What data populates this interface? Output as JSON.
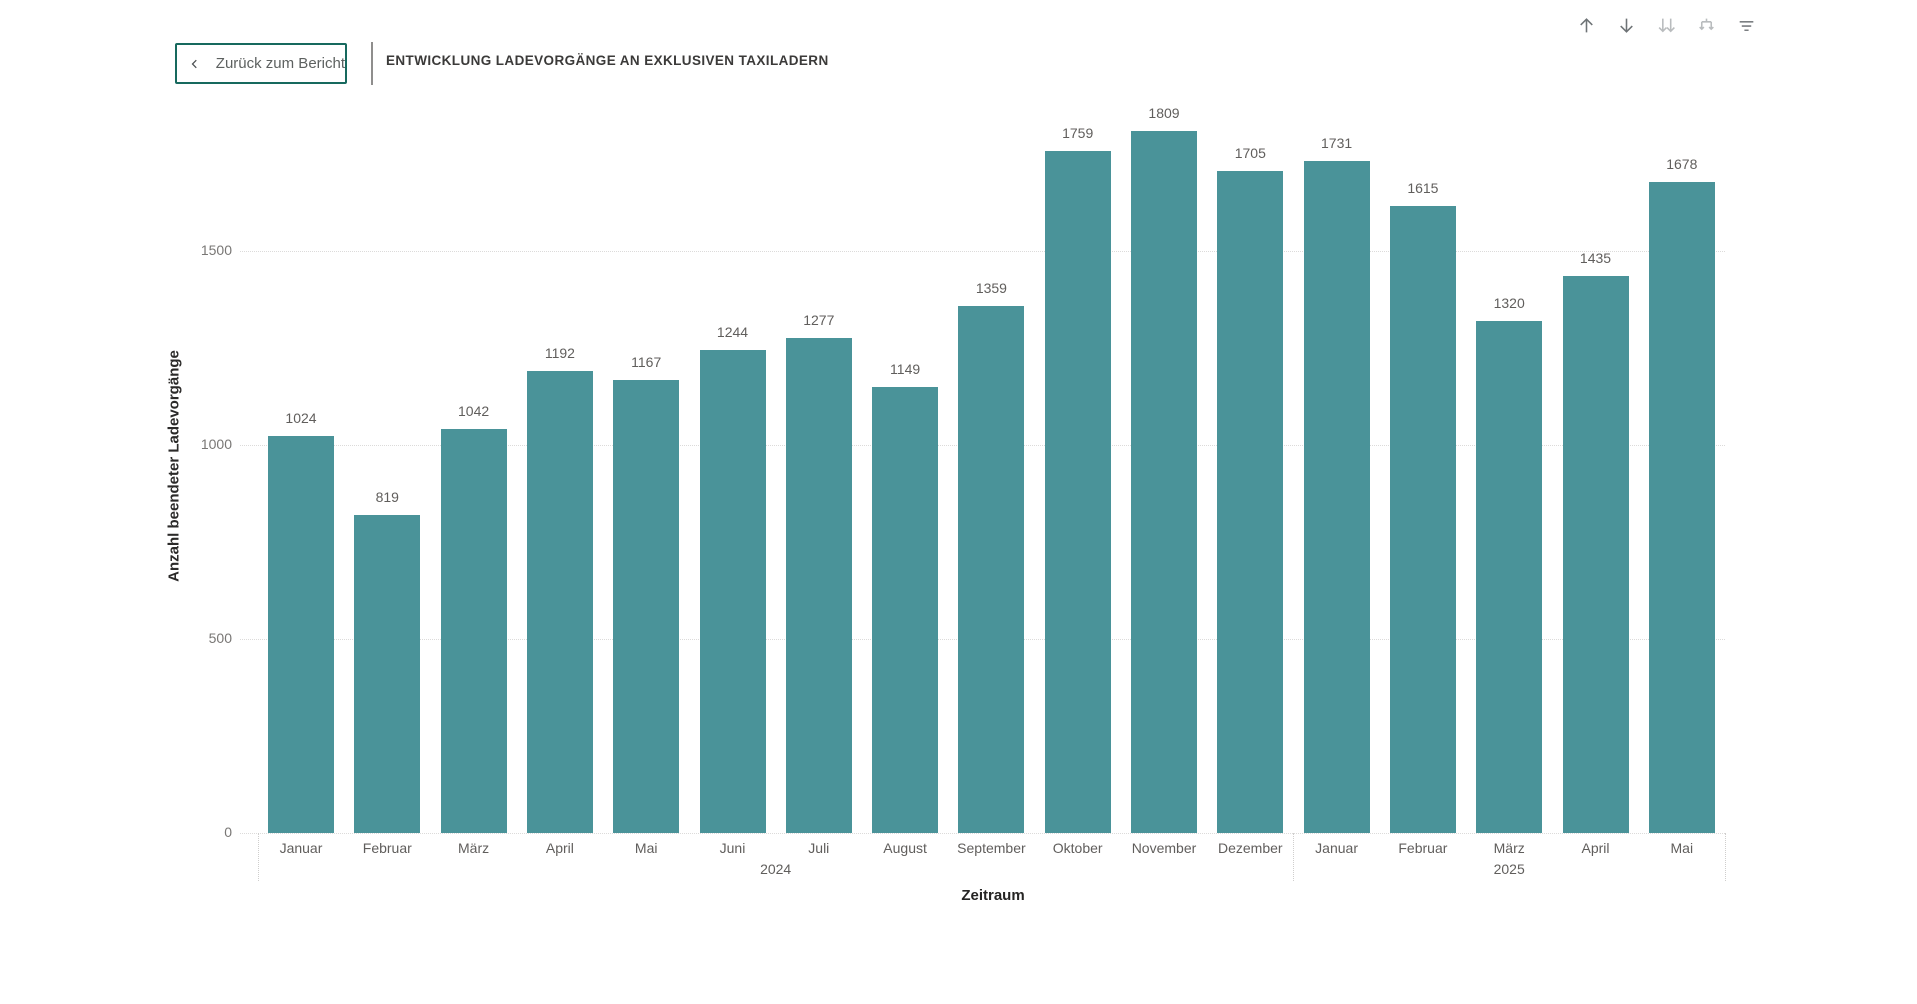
{
  "header": {
    "back_button": {
      "label": "Zurück zum Bericht"
    },
    "title": "ENTWICKLUNG LADEVORGÄNGE AN EXKLUSIVEN TAXILADERN"
  },
  "toolbar": {
    "drill_up": "drill-up",
    "drill_down": "drill-down",
    "next_level": "go-to-next-level",
    "expand_all": "expand-all-down-one-level",
    "filter": "filter"
  },
  "chart_data": {
    "type": "bar",
    "title": "ENTWICKLUNG LADEVORGÄNGE AN EXKLUSIVEN TAXILADERN",
    "xlabel": "Zeitraum",
    "ylabel": "Anzahl beendeter Ladevorgänge",
    "categories": [
      "Januar",
      "Februar",
      "März",
      "April",
      "Mai",
      "Juni",
      "Juli",
      "August",
      "September",
      "Oktober",
      "November",
      "Dezember",
      "Januar",
      "Februar",
      "März",
      "April",
      "Mai"
    ],
    "values": [
      1024,
      819,
      1042,
      1192,
      1167,
      1244,
      1277,
      1149,
      1359,
      1759,
      1809,
      1705,
      1731,
      1615,
      1320,
      1435,
      1678
    ],
    "groups": [
      {
        "label": "2024",
        "from": 0,
        "to": 11
      },
      {
        "label": "2025",
        "from": 12,
        "to": 16
      }
    ],
    "y_ticks": [
      0,
      500,
      1000,
      1500
    ],
    "ylim": [
      0,
      1860
    ],
    "grid": "dotted-horizontal",
    "legend": "none",
    "bar_color": "#4A9399"
  },
  "colors": {
    "bar_teal": "#4A9399",
    "button_border": "#17695E",
    "title_text": "#3B3A39",
    "label_gray": "#605E5C"
  }
}
